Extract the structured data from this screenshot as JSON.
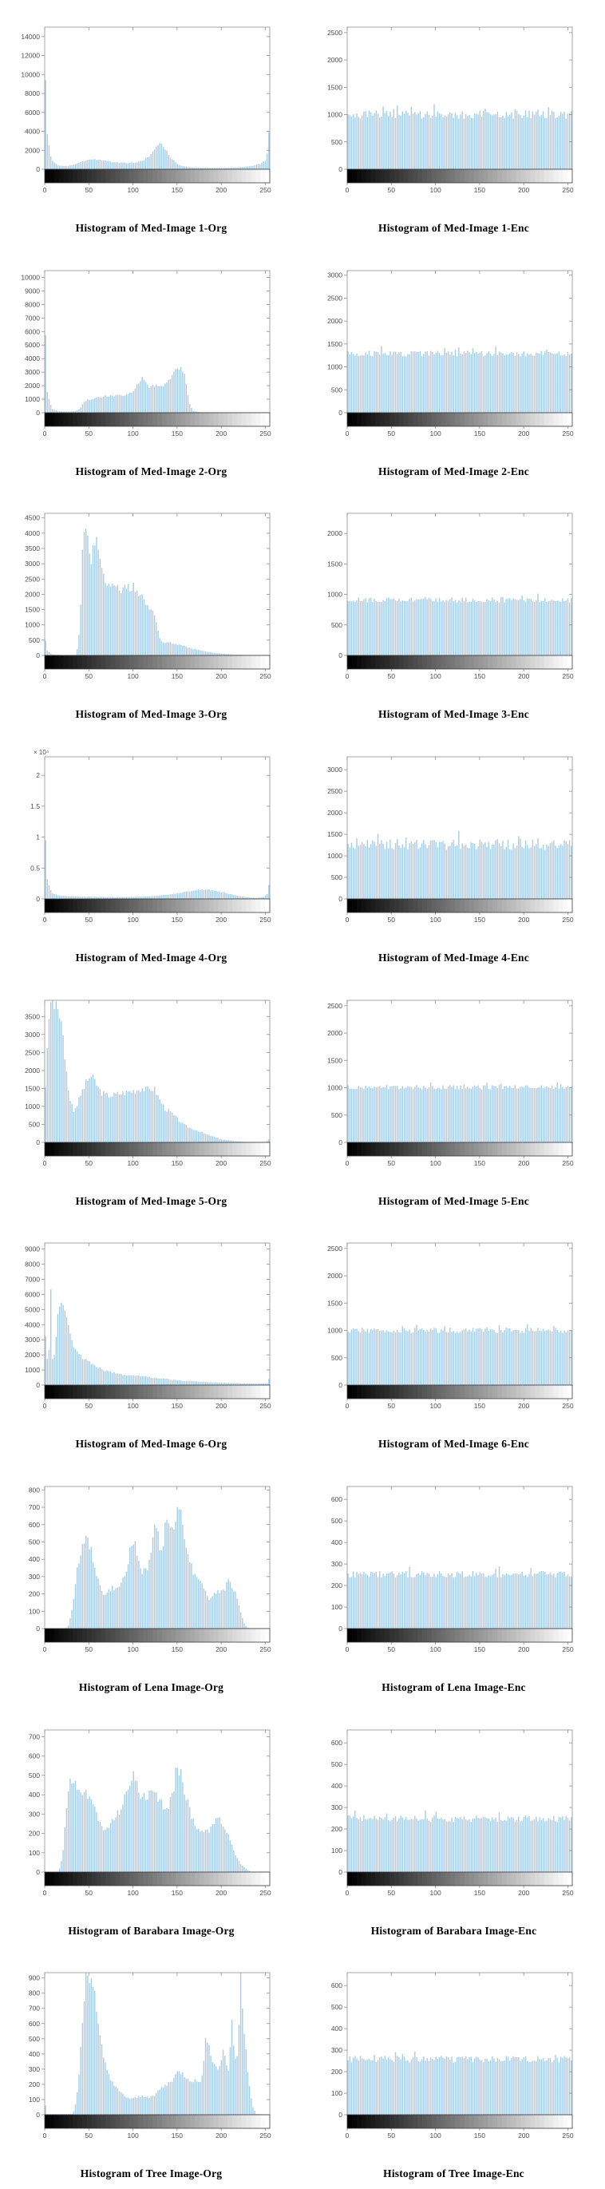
{
  "page": {
    "background": "#ffffff"
  },
  "colors": {
    "bar_fill": "#a5cce8",
    "bar_edge": "#8abbdd",
    "axis": "#8f8f8f",
    "strip_border": "#3a3a3a",
    "tick_text": "#4d4d4d",
    "caption_text": "#000000"
  },
  "axes": {
    "xticks": [
      0,
      50,
      100,
      150,
      200,
      250
    ],
    "xrange": [
      0,
      255
    ]
  },
  "chart_data": [
    {
      "id": "med1-org",
      "type": "bar",
      "caption": "Histogram of Med-Image 1-Org",
      "kind": "profile",
      "ylim": [
        0,
        15000
      ],
      "yticks": [
        0,
        2000,
        4000,
        6000,
        8000,
        10000,
        12000,
        14000
      ],
      "seed": 11,
      "profile_x": [
        0,
        1,
        3,
        8,
        15,
        25,
        35,
        42,
        50,
        58,
        66,
        75,
        85,
        95,
        105,
        112,
        120,
        126,
        130,
        134,
        138,
        144,
        152,
        162,
        175,
        190,
        205,
        220,
        235,
        245,
        250,
        253,
        255
      ],
      "profile_y": [
        15000,
        9000,
        3500,
        900,
        400,
        350,
        500,
        800,
        1000,
        1050,
        950,
        800,
        700,
        650,
        750,
        950,
        1500,
        2200,
        2700,
        2500,
        1900,
        1100,
        450,
        220,
        150,
        140,
        150,
        200,
        350,
        600,
        900,
        2000,
        6200
      ]
    },
    {
      "id": "med1-enc",
      "type": "bar",
      "caption": "Histogram of Med-Image 1-Enc",
      "kind": "uniform",
      "ylim": [
        0,
        2600
      ],
      "yticks": [
        0,
        500,
        1000,
        1500,
        2000,
        2500
      ],
      "mean": 1000,
      "jitter": 110,
      "seed": 12
    },
    {
      "id": "med2-org",
      "type": "bar",
      "caption": "Histogram of Med-Image 2-Org",
      "kind": "profile",
      "ylim": [
        0,
        10500
      ],
      "yticks": [
        0,
        1000,
        2000,
        3000,
        4000,
        5000,
        6000,
        7000,
        8000,
        9000,
        10000
      ],
      "seed": 21,
      "profile_x": [
        0,
        1,
        3,
        8,
        15,
        25,
        35,
        40,
        44,
        48,
        55,
        62,
        70,
        78,
        85,
        92,
        100,
        106,
        110,
        114,
        118,
        122,
        127,
        133,
        139,
        145,
        150,
        154,
        158,
        161,
        164,
        168,
        175,
        190,
        220,
        255
      ],
      "profile_y": [
        10500,
        6000,
        1500,
        300,
        120,
        80,
        120,
        300,
        800,
        950,
        1050,
        1100,
        1250,
        1200,
        1300,
        1280,
        1500,
        2100,
        2700,
        2300,
        1900,
        2000,
        2100,
        1900,
        2200,
        2700,
        3200,
        3400,
        2900,
        1800,
        700,
        150,
        40,
        15,
        8,
        5
      ]
    },
    {
      "id": "med2-enc",
      "type": "bar",
      "caption": "Histogram of Med-Image 2-Enc",
      "kind": "uniform",
      "ylim": [
        0,
        3100
      ],
      "yticks": [
        0,
        500,
        1000,
        1500,
        2000,
        2500,
        3000
      ],
      "mean": 1290,
      "jitter": 90,
      "seed": 22
    },
    {
      "id": "med3-org",
      "type": "bar",
      "caption": "Histogram of Med-Image 3-Org",
      "kind": "profile",
      "ylim": [
        0,
        4650
      ],
      "yticks": [
        0,
        500,
        1000,
        1500,
        2000,
        2500,
        3000,
        3500,
        4000,
        4500
      ],
      "seed": 31,
      "profile_x": [
        0,
        1,
        3,
        8,
        20,
        36,
        40,
        43,
        46,
        49,
        52,
        55,
        58,
        61,
        64,
        68,
        74,
        80,
        88,
        95,
        101,
        106,
        110,
        114,
        118,
        122,
        126,
        129,
        133,
        140,
        148,
        158,
        168,
        180,
        195,
        215,
        240,
        255
      ],
      "profile_y": [
        560,
        480,
        160,
        40,
        10,
        15,
        900,
        3500,
        4650,
        3600,
        3100,
        3500,
        3900,
        3400,
        2900,
        2500,
        2300,
        2250,
        2150,
        2200,
        2250,
        2100,
        1950,
        1700,
        1550,
        1500,
        1250,
        700,
        420,
        430,
        380,
        300,
        220,
        140,
        70,
        25,
        8,
        5
      ]
    },
    {
      "id": "med3-enc",
      "type": "bar",
      "caption": "Histogram of Med-Image 3-Enc",
      "kind": "uniform",
      "ylim": [
        0,
        2330
      ],
      "yticks": [
        0,
        500,
        1000,
        1500,
        2000
      ],
      "mean": 910,
      "jitter": 60,
      "seed": 32
    },
    {
      "id": "med4-org",
      "type": "bar",
      "caption": "Histogram of Med-Image 4-Org",
      "kind": "profile",
      "ylim": [
        0,
        23000
      ],
      "yticks": [
        0,
        5000,
        10000,
        15000,
        20000
      ],
      "ytick_labels": [
        "0",
        "0.5",
        "1",
        "1.5",
        "2"
      ],
      "exp_label": "× 10⁴",
      "seed": 41,
      "profile_x": [
        0,
        1,
        3,
        8,
        15,
        25,
        40,
        60,
        80,
        100,
        120,
        140,
        155,
        165,
        175,
        185,
        192,
        200,
        210,
        220,
        230,
        240,
        248,
        252,
        254,
        255
      ],
      "profile_y": [
        23000,
        9000,
        3000,
        1000,
        600,
        450,
        380,
        330,
        300,
        320,
        420,
        700,
        1000,
        1250,
        1450,
        1500,
        1400,
        1150,
        800,
        450,
        250,
        180,
        300,
        800,
        2200,
        5600
      ]
    },
    {
      "id": "med4-enc",
      "type": "bar",
      "caption": "Histogram of Med-Image 4-Enc",
      "kind": "uniform",
      "ylim": [
        0,
        3300
      ],
      "yticks": [
        0,
        500,
        1000,
        1500,
        2000,
        2500,
        3000
      ],
      "mean": 1260,
      "jitter": 170,
      "seed": 42
    },
    {
      "id": "med5-org",
      "type": "bar",
      "caption": "Histogram of Med-Image 5-Org",
      "kind": "profile",
      "ylim": [
        0,
        3950
      ],
      "yticks": [
        0,
        500,
        1000,
        1500,
        2000,
        2500,
        3000,
        3500
      ],
      "seed": 51,
      "profile_x": [
        0,
        1,
        3,
        6,
        9,
        13,
        17,
        21,
        25,
        29,
        33,
        37,
        42,
        47,
        52,
        57,
        62,
        68,
        75,
        82,
        90,
        97,
        104,
        110,
        115,
        120,
        125,
        130,
        136,
        142,
        149,
        157,
        165,
        173,
        182,
        192,
        202,
        215,
        230,
        250,
        254,
        255
      ],
      "profile_y": [
        1150,
        1600,
        2600,
        3950,
        3950,
        3950,
        3600,
        2900,
        1900,
        1150,
        900,
        1050,
        1400,
        1650,
        1850,
        1700,
        1450,
        1320,
        1300,
        1340,
        1380,
        1420,
        1460,
        1520,
        1450,
        1500,
        1470,
        1200,
        950,
        850,
        680,
        500,
        400,
        330,
        240,
        150,
        80,
        35,
        12,
        5,
        80,
        700
      ]
    },
    {
      "id": "med5-enc",
      "type": "bar",
      "caption": "Histogram of Med-Image 5-Enc",
      "kind": "uniform",
      "ylim": [
        0,
        2600
      ],
      "yticks": [
        0,
        500,
        1000,
        1500,
        2000,
        2500
      ],
      "mean": 1010,
      "jitter": 60,
      "seed": 52
    },
    {
      "id": "med6-org",
      "type": "bar",
      "caption": "Histogram of Med-Image 6-Org",
      "kind": "profile",
      "ylim": [
        0,
        9400
      ],
      "yticks": [
        0,
        1000,
        2000,
        3000,
        4000,
        5000,
        6000,
        7000,
        8000,
        9000
      ],
      "seed": 61,
      "profile_x": [
        0,
        1,
        3,
        5,
        6,
        7,
        9,
        11,
        13,
        15,
        17,
        19,
        22,
        26,
        30,
        34,
        38,
        43,
        48,
        54,
        60,
        68,
        76,
        85,
        95,
        105,
        115,
        125,
        138,
        152,
        168,
        185,
        205,
        225,
        242,
        252,
        254,
        255
      ],
      "profile_y": [
        4600,
        3200,
        1800,
        2400,
        9400,
        6500,
        1700,
        1900,
        3300,
        4700,
        5500,
        5600,
        5100,
        4200,
        3100,
        2500,
        2100,
        1800,
        1600,
        1400,
        1200,
        1000,
        850,
        700,
        620,
        600,
        560,
        480,
        400,
        310,
        250,
        200,
        150,
        120,
        100,
        120,
        400,
        1100
      ]
    },
    {
      "id": "med6-enc",
      "type": "bar",
      "caption": "Histogram of Med-Image 6-Enc",
      "kind": "uniform",
      "ylim": [
        0,
        2600
      ],
      "yticks": [
        0,
        500,
        1000,
        1500,
        2000,
        2500
      ],
      "mean": 1000,
      "jitter": 70,
      "seed": 62
    },
    {
      "id": "lena-org",
      "type": "bar",
      "caption": "Histogram of Lena Image-Org",
      "kind": "profile",
      "ylim": [
        0,
        820
      ],
      "yticks": [
        0,
        100,
        200,
        300,
        400,
        500,
        600,
        700,
        800
      ],
      "seed": 71,
      "profile_x": [
        0,
        24,
        27,
        30,
        34,
        38,
        42,
        46,
        50,
        54,
        58,
        62,
        66,
        70,
        74,
        78,
        82,
        86,
        90,
        94,
        98,
        101,
        105,
        109,
        113,
        117,
        121,
        125,
        128,
        131,
        134,
        137,
        140,
        143,
        146,
        149,
        152,
        155,
        158,
        161,
        164,
        168,
        172,
        176,
        180,
        184,
        188,
        192,
        196,
        200,
        204,
        208,
        212,
        216,
        220,
        224,
        227,
        230,
        234,
        255
      ],
      "profile_y": [
        0,
        0,
        20,
        80,
        220,
        380,
        470,
        520,
        490,
        420,
        340,
        250,
        205,
        200,
        225,
        235,
        220,
        255,
        300,
        380,
        470,
        510,
        420,
        330,
        340,
        355,
        420,
        630,
        560,
        470,
        490,
        600,
        630,
        570,
        610,
        640,
        700,
        660,
        560,
        480,
        400,
        330,
        300,
        290,
        250,
        180,
        170,
        200,
        220,
        210,
        230,
        270,
        250,
        210,
        140,
        60,
        20,
        5,
        0,
        0
      ]
    },
    {
      "id": "lena-enc",
      "type": "bar",
      "caption": "Histogram of Lena Image-Enc",
      "kind": "uniform",
      "ylim": [
        0,
        660
      ],
      "yticks": [
        0,
        100,
        200,
        300,
        400,
        500,
        600
      ],
      "mean": 252,
      "jitter": 22,
      "seed": 72
    },
    {
      "id": "barabara-org",
      "type": "bar",
      "caption": "Histogram of Barabara Image-Org",
      "kind": "profile",
      "ylim": [
        0,
        735
      ],
      "yticks": [
        0,
        100,
        200,
        300,
        400,
        500,
        600,
        700
      ],
      "seed": 81,
      "profile_x": [
        0,
        15,
        18,
        21,
        24,
        28,
        32,
        36,
        40,
        44,
        48,
        52,
        56,
        60,
        64,
        68,
        72,
        76,
        80,
        85,
        90,
        95,
        100,
        103,
        106,
        110,
        114,
        118,
        122,
        126,
        130,
        134,
        138,
        142,
        146,
        150,
        154,
        158,
        162,
        166,
        170,
        175,
        180,
        185,
        190,
        195,
        200,
        204,
        208,
        212,
        216,
        220,
        225,
        230,
        235,
        240,
        244,
        255
      ],
      "profile_y": [
        0,
        0,
        30,
        120,
        300,
        460,
        490,
        450,
        405,
        430,
        405,
        375,
        325,
        280,
        235,
        215,
        235,
        260,
        285,
        320,
        375,
        440,
        530,
        470,
        430,
        395,
        380,
        395,
        410,
        395,
        370,
        340,
        330,
        360,
        420,
        560,
        510,
        430,
        365,
        300,
        250,
        225,
        210,
        205,
        235,
        290,
        265,
        230,
        195,
        150,
        95,
        55,
        30,
        10,
        0,
        0,
        0,
        0
      ]
    },
    {
      "id": "barabara-enc",
      "type": "bar",
      "caption": "Histogram of Barabara Image-Enc",
      "kind": "uniform",
      "ylim": [
        0,
        660
      ],
      "yticks": [
        0,
        100,
        200,
        300,
        400,
        500,
        600
      ],
      "mean": 248,
      "jitter": 22,
      "seed": 82
    },
    {
      "id": "tree-org",
      "type": "bar",
      "caption": "Histogram of Tree Image-Org",
      "kind": "profile",
      "ylim": [
        0,
        935
      ],
      "yticks": [
        0,
        100,
        200,
        300,
        400,
        500,
        600,
        700,
        800,
        900
      ],
      "seed": 91,
      "profile_x": [
        0,
        1,
        3,
        32,
        36,
        40,
        44,
        47,
        50,
        53,
        56,
        59,
        62,
        65,
        68,
        72,
        76,
        80,
        85,
        90,
        95,
        100,
        105,
        110,
        115,
        120,
        125,
        130,
        135,
        140,
        145,
        150,
        155,
        160,
        165,
        170,
        175,
        179,
        183,
        186,
        189,
        193,
        197,
        200,
        203,
        206,
        209,
        212,
        214,
        216,
        219,
        222,
        224,
        227,
        230,
        233,
        236,
        240,
        255
      ],
      "profile_y": [
        130,
        60,
        5,
        5,
        90,
        350,
        700,
        935,
        935,
        900,
        840,
        640,
        520,
        430,
        340,
        280,
        225,
        180,
        150,
        125,
        110,
        105,
        115,
        120,
        125,
        115,
        135,
        165,
        185,
        205,
        235,
        275,
        280,
        250,
        230,
        222,
        215,
        260,
        520,
        480,
        390,
        310,
        310,
        360,
        430,
        330,
        290,
        660,
        430,
        380,
        390,
        935,
        730,
        500,
        300,
        150,
        50,
        5,
        0
      ]
    },
    {
      "id": "tree-enc",
      "type": "bar",
      "caption": "Histogram of Tree Image-Enc",
      "kind": "uniform",
      "ylim": [
        0,
        660
      ],
      "yticks": [
        0,
        100,
        200,
        300,
        400,
        500,
        600
      ],
      "mean": 258,
      "jitter": 22,
      "seed": 92
    }
  ]
}
